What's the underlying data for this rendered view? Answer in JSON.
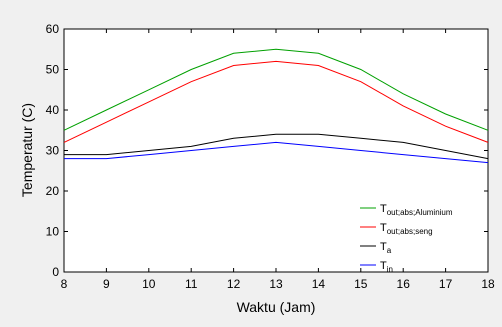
{
  "chart_data": {
    "type": "line",
    "title": "",
    "xlabel": "Waktu (Jam)",
    "ylabel": "Temperatur (C)",
    "x": [
      8,
      9,
      10,
      11,
      12,
      13,
      14,
      15,
      16,
      17,
      18
    ],
    "xlim": [
      8,
      18
    ],
    "ylim": [
      0,
      60
    ],
    "xticks": [
      8,
      9,
      10,
      11,
      12,
      13,
      14,
      15,
      16,
      17,
      18
    ],
    "yticks": [
      0,
      10,
      20,
      30,
      40,
      50,
      60
    ],
    "grid": false,
    "legend_position": "bottom-right",
    "series": [
      {
        "name_main": "T",
        "name_sub": "out;abs;Aluminium",
        "color": "#00a000",
        "values": [
          35,
          40,
          45,
          50,
          54,
          55,
          54,
          50,
          44,
          39,
          35
        ]
      },
      {
        "name_main": "T",
        "name_sub": "out;abs;seng",
        "color": "#ff0000",
        "values": [
          32,
          37,
          42,
          47,
          51,
          52,
          51,
          47,
          41,
          36,
          32
        ]
      },
      {
        "name_main": "T",
        "name_sub": "a",
        "color": "#000000",
        "values": [
          29,
          29,
          30,
          31,
          33,
          34,
          34,
          33,
          32,
          30,
          28
        ]
      },
      {
        "name_main": "T",
        "name_sub": "in",
        "color": "#0000ff",
        "values": [
          28,
          28,
          29,
          30,
          31,
          32,
          31,
          30,
          29,
          28,
          27
        ]
      }
    ]
  }
}
